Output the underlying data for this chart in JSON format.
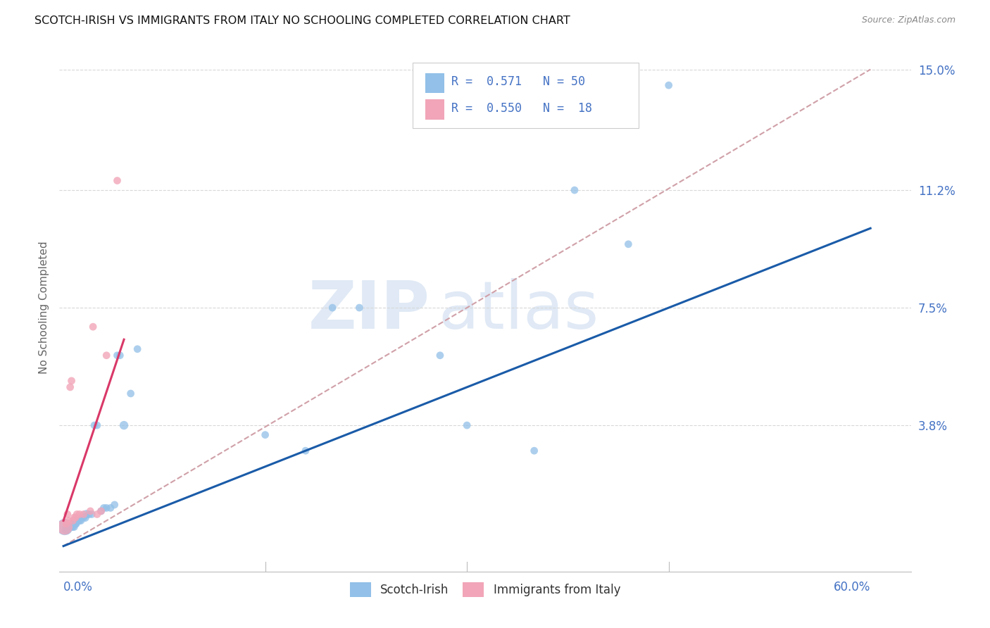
{
  "title": "SCOTCH-IRISH VS IMMIGRANTS FROM ITALY NO SCHOOLING COMPLETED CORRELATION CHART",
  "source": "Source: ZipAtlas.com",
  "ylabel": "No Schooling Completed",
  "ytick_vals": [
    0.0,
    3.8,
    7.5,
    11.2,
    15.0
  ],
  "ytick_labels": [
    "",
    "3.8%",
    "7.5%",
    "11.2%",
    "15.0%"
  ],
  "xmin": -0.3,
  "xmax": 63.0,
  "ymin": -0.8,
  "ymax": 15.8,
  "legend_r1": "R =  0.571   N = 50",
  "legend_r2": "R =  0.550   N =  18",
  "legend_label1": "Scotch-Irish",
  "legend_label2": "Immigrants from Italy",
  "blue_color": "#92C0E8",
  "pink_color": "#F2A5B8",
  "blue_line_color": "#1A5BA8",
  "pink_line_color": "#D93868",
  "diag_color": "#D0A0A8",
  "grid_color": "#D8D8D8",
  "watermark_color": "#C8D8EE",
  "axis_color": "#4472C4",
  "blue_reg_x0": 0.0,
  "blue_reg_x1": 60.0,
  "blue_reg_y0": 0.0,
  "blue_reg_y1": 10.0,
  "pink_reg_x0": 0.0,
  "pink_reg_x1": 4.5,
  "pink_reg_y0": 0.8,
  "pink_reg_y1": 6.5,
  "blue_x": [
    0.1,
    0.15,
    0.2,
    0.25,
    0.3,
    0.35,
    0.4,
    0.45,
    0.5,
    0.55,
    0.6,
    0.65,
    0.7,
    0.75,
    0.8,
    0.85,
    0.9,
    0.95,
    1.0,
    1.1,
    1.2,
    1.3,
    1.4,
    1.5,
    1.6,
    1.7,
    1.9,
    2.1,
    2.3,
    2.5,
    2.8,
    3.0,
    3.2,
    3.5,
    3.8,
    4.0,
    4.2,
    4.5,
    5.0,
    5.5,
    15.0,
    18.0,
    20.0,
    22.0,
    28.0,
    30.0,
    35.0,
    38.0,
    42.0,
    45.0
  ],
  "blue_y": [
    0.6,
    0.5,
    0.6,
    0.6,
    0.5,
    0.6,
    0.6,
    0.6,
    0.6,
    0.7,
    0.6,
    0.7,
    0.6,
    0.7,
    0.6,
    0.7,
    0.7,
    0.7,
    0.8,
    0.8,
    0.8,
    0.8,
    0.9,
    0.9,
    0.9,
    1.0,
    1.0,
    1.0,
    3.8,
    3.8,
    1.1,
    1.2,
    1.2,
    1.2,
    1.3,
    6.0,
    6.0,
    3.8,
    4.8,
    6.2,
    3.5,
    3.0,
    7.5,
    7.5,
    6.0,
    3.8,
    3.0,
    11.2,
    9.5,
    14.5
  ],
  "blue_s": [
    60,
    60,
    60,
    60,
    60,
    60,
    60,
    60,
    60,
    60,
    60,
    60,
    60,
    60,
    60,
    60,
    60,
    60,
    60,
    60,
    60,
    60,
    60,
    60,
    80,
    80,
    60,
    60,
    60,
    60,
    60,
    60,
    60,
    60,
    60,
    60,
    60,
    80,
    60,
    60,
    60,
    60,
    60,
    60,
    60,
    60,
    60,
    60,
    60,
    60
  ],
  "pink_x": [
    0.1,
    0.2,
    0.3,
    0.4,
    0.5,
    0.6,
    0.7,
    0.8,
    0.9,
    1.0,
    1.2,
    1.5,
    2.0,
    2.2,
    2.5,
    2.8,
    3.2,
    4.0
  ],
  "pink_y": [
    0.6,
    0.7,
    1.0,
    0.8,
    5.0,
    5.2,
    0.8,
    0.9,
    0.9,
    1.0,
    1.0,
    1.0,
    1.1,
    6.9,
    1.0,
    1.1,
    6.0,
    11.5
  ],
  "pink_s": [
    60,
    60,
    60,
    60,
    60,
    60,
    60,
    60,
    60,
    60,
    60,
    60,
    60,
    60,
    60,
    60,
    60,
    60
  ]
}
